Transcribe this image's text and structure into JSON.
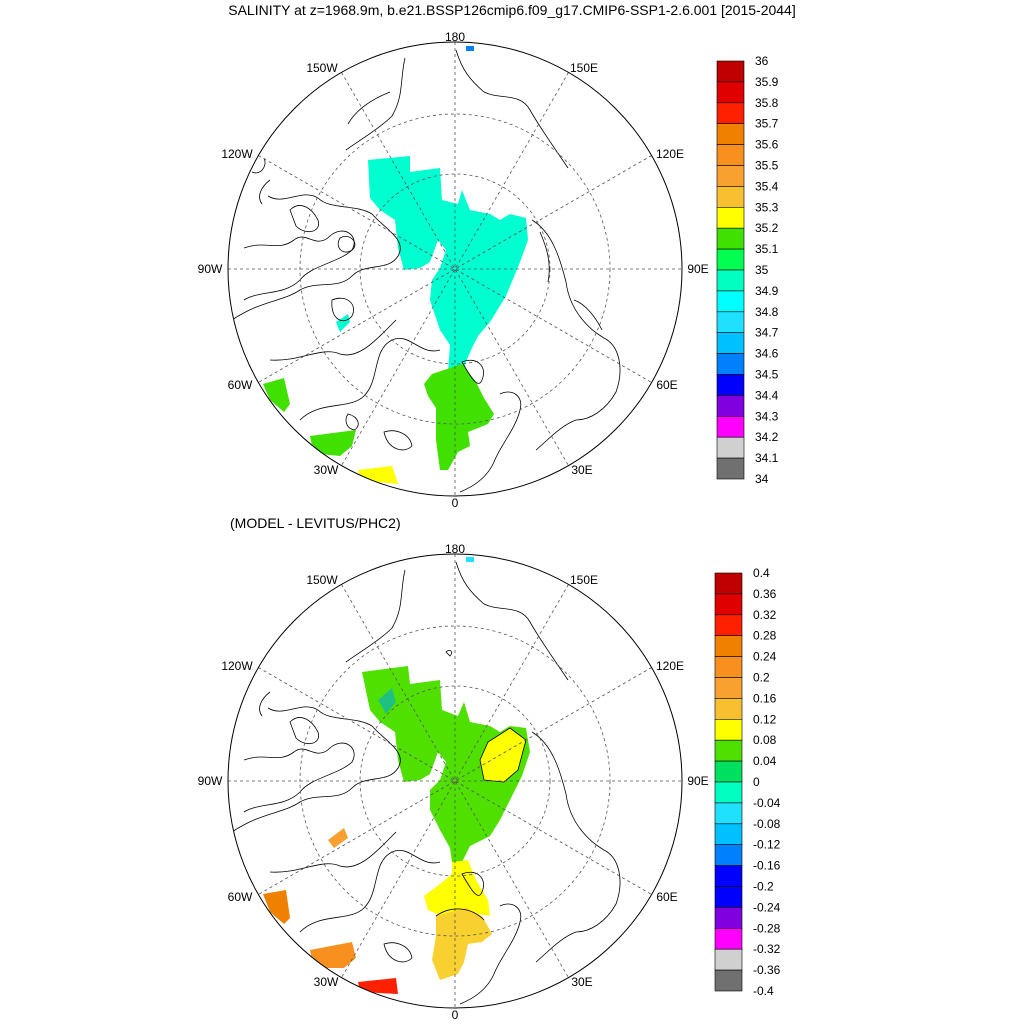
{
  "title": "SALINITY at z=1968.9m, b.e21.BSSP126cmip6.f09_g17.CMIP6-SSP1-2.6.001 [2015-2044]",
  "subtitle": "(MODEL - LEVITUS/PHC2)",
  "maps": [
    {
      "id": "top",
      "longitude_labels": [
        "180",
        "150E",
        "120E",
        "90E",
        "60E",
        "30E",
        "0",
        "30W",
        "60W",
        "90W",
        "120W",
        "150W"
      ],
      "colorbar": {
        "labels": [
          "36",
          "35.9",
          "35.8",
          "35.7",
          "35.6",
          "35.5",
          "35.4",
          "35.3",
          "35.2",
          "35.1",
          "35",
          "34.9",
          "34.8",
          "34.7",
          "34.6",
          "34.5",
          "34.4",
          "34.3",
          "34.2",
          "34.1",
          "34"
        ],
        "colors": [
          "#c00000",
          "#e00000",
          "#ff2000",
          "#f08000",
          "#f89020",
          "#f8a030",
          "#f8c030",
          "#ffff00",
          "#40e000",
          "#00ff50",
          "#00ffc0",
          "#00ffff",
          "#20e0ff",
          "#00c0ff",
          "#0080ff",
          "#0000ff",
          "#8000e0",
          "#ff00ff",
          "#d0d0d0",
          "#707070"
        ]
      }
    },
    {
      "id": "bottom",
      "longitude_labels": [
        "180",
        "150E",
        "120E",
        "90E",
        "60E",
        "30E",
        "0",
        "30W",
        "60W",
        "90W",
        "120W",
        "150W"
      ],
      "colorbar": {
        "labels": [
          "0.4",
          "0.36",
          "0.32",
          "0.28",
          "0.24",
          "0.2",
          "0.16",
          "0.12",
          "0.08",
          "0.04",
          "0",
          "-0.04",
          "-0.08",
          "-0.12",
          "-0.16",
          "-0.2",
          "-0.24",
          "-0.28",
          "-0.32",
          "-0.36",
          "-0.4"
        ],
        "colors": [
          "#c00000",
          "#e00000",
          "#ff2000",
          "#f08000",
          "#f89020",
          "#f8a030",
          "#f8c030",
          "#ffff00",
          "#50e000",
          "#00e060",
          "#00ffc0",
          "#20e0ff",
          "#00c0ff",
          "#0080ff",
          "#0000ff",
          "#0000ff",
          "#8000e0",
          "#ff00ff",
          "#d0d0d0",
          "#707070"
        ]
      }
    }
  ]
}
